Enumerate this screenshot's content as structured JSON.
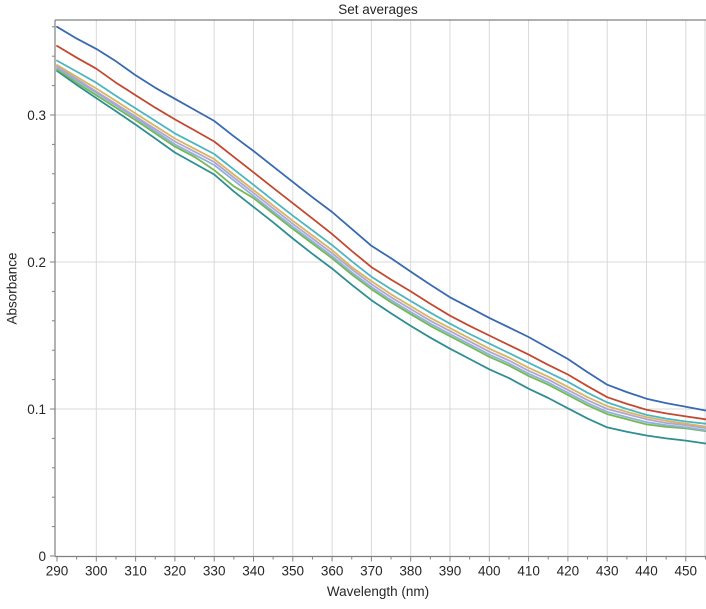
{
  "chart_data": {
    "type": "line",
    "title": "Set averages",
    "xlabel": "Wavelength (nm)",
    "ylabel": "Absorbance",
    "xlim": [
      290,
      455
    ],
    "ylim": [
      0,
      0.365
    ],
    "grid": true,
    "legend": "none",
    "x_ticks": [
      290,
      300,
      310,
      320,
      330,
      340,
      350,
      360,
      370,
      380,
      390,
      400,
      410,
      420,
      430,
      440,
      450
    ],
    "x_minor_ticks": [
      295,
      305,
      315,
      325,
      335,
      345,
      355,
      365,
      375,
      385,
      395,
      405,
      415,
      425,
      435,
      445,
      455
    ],
    "y_ticks": [
      {
        "value": 0,
        "label": "0"
      },
      {
        "value": 0.1,
        "label": "0.1"
      },
      {
        "value": 0.2,
        "label": "0.2"
      },
      {
        "value": 0.3,
        "label": "0.3"
      }
    ],
    "y_minor_step": 0.02,
    "x": [
      290,
      295,
      300,
      305,
      310,
      315,
      320,
      325,
      330,
      335,
      340,
      345,
      350,
      355,
      360,
      365,
      370,
      375,
      380,
      385,
      390,
      395,
      400,
      405,
      410,
      415,
      420,
      425,
      430,
      435,
      440,
      445,
      450,
      455
    ],
    "series": [
      {
        "name": "blue",
        "color": "#3869b1",
        "values": [
          0.36,
          0.352,
          0.345,
          0.3365,
          0.327,
          0.3185,
          0.311,
          0.3035,
          0.296,
          0.2855,
          0.2755,
          0.265,
          0.2545,
          0.244,
          0.234,
          0.2225,
          0.211,
          0.2025,
          0.1935,
          0.1845,
          0.176,
          0.169,
          0.162,
          0.1555,
          0.149,
          0.1415,
          0.134,
          0.125,
          0.1165,
          0.1115,
          0.107,
          0.104,
          0.1015,
          0.099
        ]
      },
      {
        "name": "red",
        "color": "#c2492f",
        "values": [
          0.347,
          0.339,
          0.3315,
          0.322,
          0.3135,
          0.305,
          0.297,
          0.2895,
          0.282,
          0.2715,
          0.261,
          0.2505,
          0.24,
          0.2295,
          0.219,
          0.2075,
          0.1965,
          0.188,
          0.18,
          0.1715,
          0.1635,
          0.1565,
          0.15,
          0.1435,
          0.137,
          0.13,
          0.1235,
          0.1155,
          0.108,
          0.1035,
          0.0995,
          0.097,
          0.095,
          0.093
        ]
      },
      {
        "name": "cyan",
        "color": "#4cb5c3",
        "values": [
          0.337,
          0.3295,
          0.322,
          0.313,
          0.3045,
          0.296,
          0.2875,
          0.2805,
          0.2735,
          0.263,
          0.2525,
          0.242,
          0.2315,
          0.2215,
          0.2115,
          0.2005,
          0.19,
          0.1815,
          0.1735,
          0.1655,
          0.158,
          0.151,
          0.1445,
          0.138,
          0.1315,
          0.125,
          0.1185,
          0.111,
          0.1045,
          0.1,
          0.096,
          0.0935,
          0.0915,
          0.09
        ]
      },
      {
        "name": "yellow",
        "color": "#d9b55f",
        "values": [
          0.334,
          0.326,
          0.318,
          0.3095,
          0.301,
          0.2925,
          0.284,
          0.277,
          0.27,
          0.2595,
          0.249,
          0.2385,
          0.228,
          0.218,
          0.208,
          0.1965,
          0.187,
          0.178,
          0.17,
          0.162,
          0.155,
          0.148,
          0.141,
          0.135,
          0.128,
          0.122,
          0.115,
          0.108,
          0.102,
          0.098,
          0.0945,
          0.092,
          0.09,
          0.088
        ]
      },
      {
        "name": "lavender",
        "color": "#b1a5d3",
        "values": [
          0.333,
          0.3245,
          0.316,
          0.3075,
          0.299,
          0.2905,
          0.282,
          0.275,
          0.268,
          0.2575,
          0.247,
          0.2365,
          0.226,
          0.216,
          0.206,
          0.195,
          0.185,
          0.176,
          0.168,
          0.16,
          0.153,
          0.146,
          0.139,
          0.133,
          0.126,
          0.12,
          0.113,
          0.106,
          0.1,
          0.0965,
          0.093,
          0.0905,
          0.089,
          0.087
        ]
      },
      {
        "name": "periwinkle",
        "color": "#8fb1dc",
        "values": [
          0.332,
          0.3235,
          0.315,
          0.3065,
          0.298,
          0.289,
          0.28,
          0.273,
          0.266,
          0.2555,
          0.245,
          0.2345,
          0.224,
          0.214,
          0.204,
          0.193,
          0.183,
          0.174,
          0.166,
          0.158,
          0.151,
          0.144,
          0.137,
          0.131,
          0.124,
          0.118,
          0.111,
          0.104,
          0.098,
          0.0945,
          0.091,
          0.089,
          0.0875,
          0.0855
        ]
      },
      {
        "name": "green",
        "color": "#74ba50",
        "values": [
          0.331,
          0.322,
          0.3135,
          0.305,
          0.2965,
          0.2875,
          0.2785,
          0.2715,
          0.2625,
          0.2515,
          0.2435,
          0.233,
          0.2225,
          0.2125,
          0.2025,
          0.1915,
          0.1815,
          0.1725,
          0.1645,
          0.1565,
          0.1495,
          0.1425,
          0.1355,
          0.1295,
          0.1225,
          0.1165,
          0.1095,
          0.1025,
          0.0965,
          0.093,
          0.0895,
          0.0878,
          0.0868,
          0.085
        ]
      },
      {
        "name": "teal",
        "color": "#2e8e90",
        "values": [
          0.33,
          0.3205,
          0.3115,
          0.3025,
          0.2935,
          0.284,
          0.2745,
          0.267,
          0.2595,
          0.248,
          0.2375,
          0.227,
          0.216,
          0.2055,
          0.1955,
          0.1845,
          0.174,
          0.165,
          0.1565,
          0.1485,
          0.141,
          0.134,
          0.127,
          0.121,
          0.1138,
          0.1075,
          0.1005,
          0.0935,
          0.0875,
          0.0845,
          0.082,
          0.08,
          0.0785,
          0.0765
        ]
      }
    ]
  },
  "colors": {
    "background": "#ffffff",
    "grid": "#d9d9d9",
    "spine": "#808080",
    "tick": "#808080",
    "text": "#262626"
  }
}
